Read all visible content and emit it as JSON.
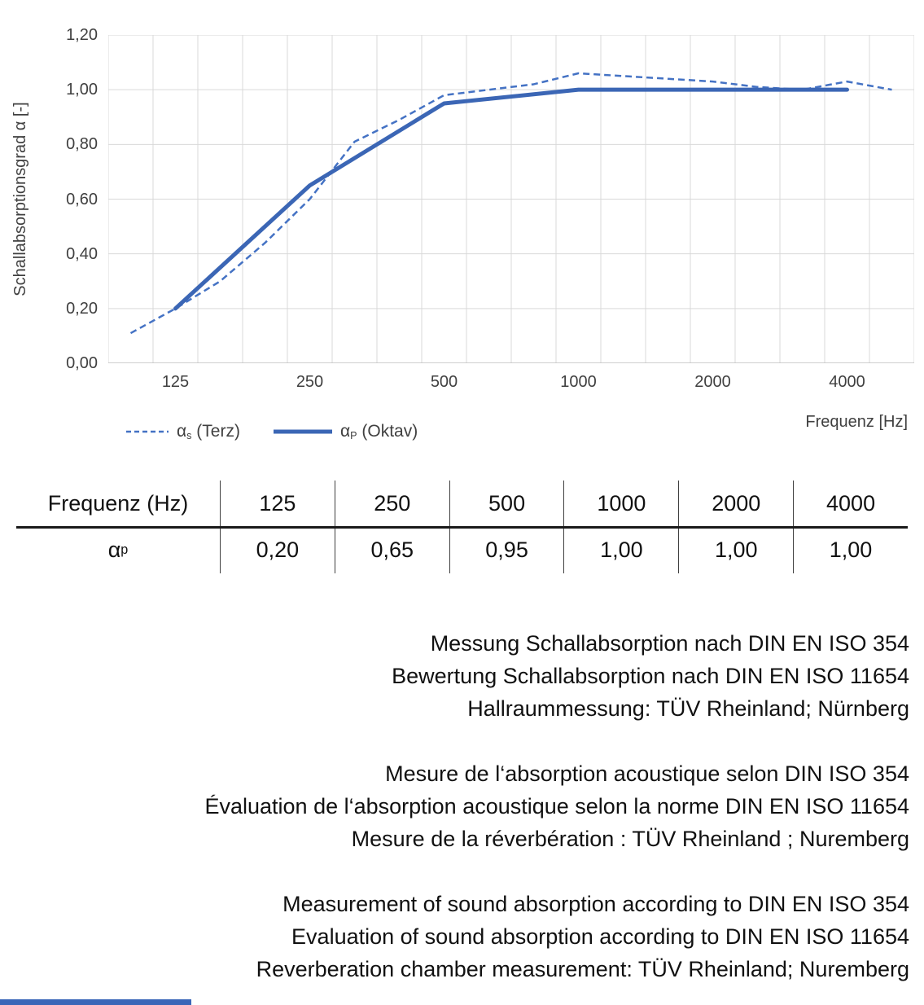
{
  "chart": {
    "y_axis_title": "Schallabsorptionsgrad α [-]",
    "x_axis_title": "Frequenz [Hz]",
    "y_tick_labels": [
      "1,20",
      "1,00",
      "0,80",
      "0,60",
      "0,40",
      "0,20",
      "0,00"
    ],
    "x_tick_labels": [
      "125",
      "250",
      "500",
      "1000",
      "2000",
      "4000"
    ],
    "legend": {
      "s_alpha": "α",
      "s_sub": "s",
      "s_text": "(Terz)",
      "p_alpha": "α",
      "p_sub": "P",
      "p_text": "(Oktav)"
    }
  },
  "chart_data": {
    "type": "line",
    "title": "",
    "xlabel": "Frequenz [Hz]",
    "ylabel": "Schallabsorptionsgrad α [-]",
    "x_scale": "logarithmic (third-octave categories)",
    "categories": [
      100,
      125,
      160,
      200,
      250,
      315,
      400,
      500,
      630,
      800,
      1000,
      1250,
      1600,
      2000,
      2500,
      3150,
      4000,
      5000
    ],
    "ylim": [
      0,
      1.2
    ],
    "ytick_step": 0.2,
    "grid": true,
    "legend_position": "bottom-left",
    "series": [
      {
        "name": "αs (Terz)",
        "style": "dashed",
        "color": "#4472C4",
        "values": [
          0.11,
          0.2,
          0.3,
          0.44,
          0.6,
          0.81,
          0.89,
          0.98,
          1.0,
          1.02,
          1.06,
          1.05,
          1.04,
          1.03,
          1.01,
          1.0,
          1.03,
          1.0
        ]
      },
      {
        "name": "αP (Oktav)",
        "style": "solid",
        "color": "#3B66B5",
        "x": [
          125,
          250,
          500,
          1000,
          2000,
          4000
        ],
        "values": [
          0.2,
          0.65,
          0.95,
          1.0,
          1.0,
          1.0
        ]
      }
    ]
  },
  "table": {
    "header_label": "Frequenz (Hz)",
    "frequencies": [
      "125",
      "250",
      "500",
      "1000",
      "2000",
      "4000"
    ],
    "row_alpha": "α",
    "row_sub": "p",
    "values": [
      "0,20",
      "0,65",
      "0,95",
      "1,00",
      "1,00",
      "1,00"
    ]
  },
  "notes": {
    "german": [
      "Messung Schallabsorption nach DIN EN ISO 354",
      "Bewertung Schallabsorption nach DIN EN ISO 11654",
      "Hallraummessung: TÜV Rheinland; Nürnberg"
    ],
    "french": [
      "Mesure de l‘absorption acoustique selon DIN ISO 354",
      "Évaluation de l‘absorption acoustique selon la norme DIN EN ISO 11654",
      "Mesure de la réverbération : TÜV Rheinland ; Nuremberg"
    ],
    "english": [
      "Measurement of sound absorption according to DIN EN ISO 354",
      "Evaluation of sound absorption according to DIN EN ISO 11654",
      "Reverberation chamber measurement: TÜV Rheinland; Nuremberg"
    ]
  },
  "colors": {
    "dashed_line": "#4472C4",
    "solid_line": "#3B66B5",
    "grid": "#D9D9D9",
    "axis_line": "#BFBFBF",
    "axis_text": "#404040",
    "accent_bar": "#3A66B8"
  }
}
